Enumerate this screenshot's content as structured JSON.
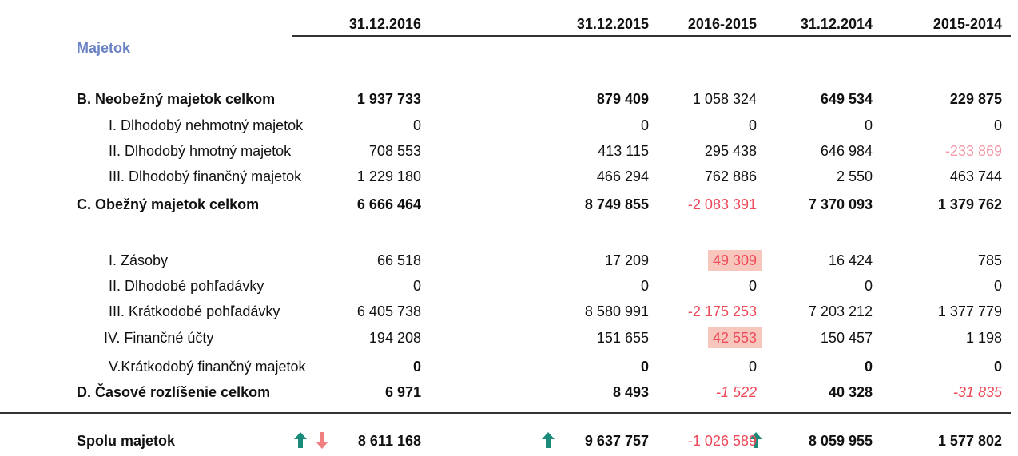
{
  "header": {
    "section": "Majetok",
    "columns": [
      "31.12.2016",
      "31.12.2015",
      "2016-2015",
      "31.12.2014",
      "2015-2014"
    ]
  },
  "rows": [
    {
      "label": "B. Neobežný majetok celkom",
      "values": [
        "1 937 733",
        "879 409",
        "1 058 324",
        "649 534",
        "229 875"
      ]
    },
    {
      "label": "I. Dlhodobý nehmotný majetok",
      "values": [
        "0",
        "0",
        "0",
        "0",
        "0"
      ]
    },
    {
      "label": "II. Dlhodobý hmotný majetok",
      "values": [
        "708 553",
        "413 115",
        "295 438",
        "646 984",
        "-233 869"
      ]
    },
    {
      "label": "III. Dlhodobý finančný majetok",
      "values": [
        "1 229 180",
        "466 294",
        "762 886",
        "2 550",
        "463 744"
      ]
    },
    {
      "label": "C. Obežný majetok celkom",
      "values": [
        "6 666 464",
        "8 749 855",
        "-2 083 391",
        "7 370 093",
        "1 379 762"
      ]
    },
    {
      "label": "I. Zásoby",
      "values": [
        "66 518",
        "17 209",
        "49 309",
        "16 424",
        "785"
      ]
    },
    {
      "label": "II. Dlhodobé pohľadávky",
      "values": [
        "0",
        "0",
        "0",
        "0",
        "0"
      ]
    },
    {
      "label": "III. Krátkodobé pohľadávky",
      "values": [
        "6 405 738",
        "8 580 991",
        "-2 175 253",
        "7 203 212",
        "1 377 779"
      ]
    },
    {
      "label": "IV. Finančné účty",
      "values": [
        "194 208",
        "151 655",
        "42 553",
        "150 457",
        "1 198"
      ]
    },
    {
      "label": "V.Krátkodobý finančný majetok",
      "values": [
        "0",
        "0",
        "0",
        "0",
        "0"
      ]
    },
    {
      "label": "D. Časové rozlíšenie celkom",
      "values": [
        "6 971",
        "8 493",
        "-1 522",
        "40 328",
        "-31 835"
      ]
    },
    {
      "label": "Spolu majetok",
      "values": [
        "8 611 168",
        "9 637 757",
        "-1 026 589",
        "8 059 955",
        "1 577 802"
      ]
    }
  ]
}
